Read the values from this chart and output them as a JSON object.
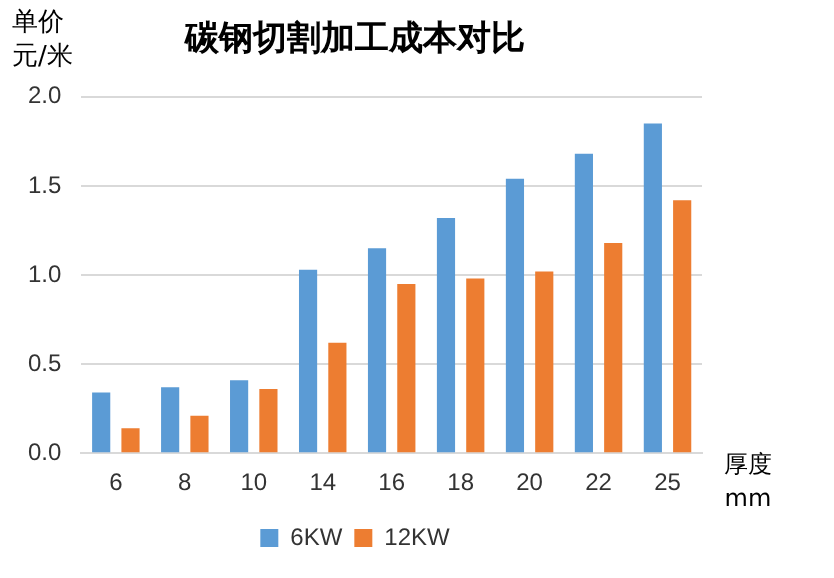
{
  "chart_data": {
    "type": "bar",
    "title": "碳钢切割加工成本对比",
    "xlabel": "厚度\nmm",
    "ylabel": "单价元/米",
    "categories": [
      "6",
      "8",
      "10",
      "14",
      "16",
      "18",
      "20",
      "22",
      "25"
    ],
    "series": [
      {
        "name": "6KW",
        "color": "#5b9bd5",
        "values": [
          0.34,
          0.37,
          0.41,
          1.03,
          1.15,
          1.32,
          1.54,
          1.68,
          1.85
        ]
      },
      {
        "name": "12KW",
        "color": "#ed7d31",
        "values": [
          0.14,
          0.21,
          0.36,
          0.62,
          0.95,
          0.98,
          1.02,
          1.18,
          1.42
        ]
      }
    ],
    "ylim": [
      0,
      2
    ],
    "yticks": [
      {
        "value": 0,
        "label": "0.0"
      },
      {
        "value": 0.5,
        "label": "0.5"
      },
      {
        "value": 1,
        "label": "1.0"
      },
      {
        "value": 1.5,
        "label": "1.5"
      },
      {
        "value": 2,
        "label": "2.0"
      }
    ],
    "grid": "y",
    "legend": "bottom"
  }
}
